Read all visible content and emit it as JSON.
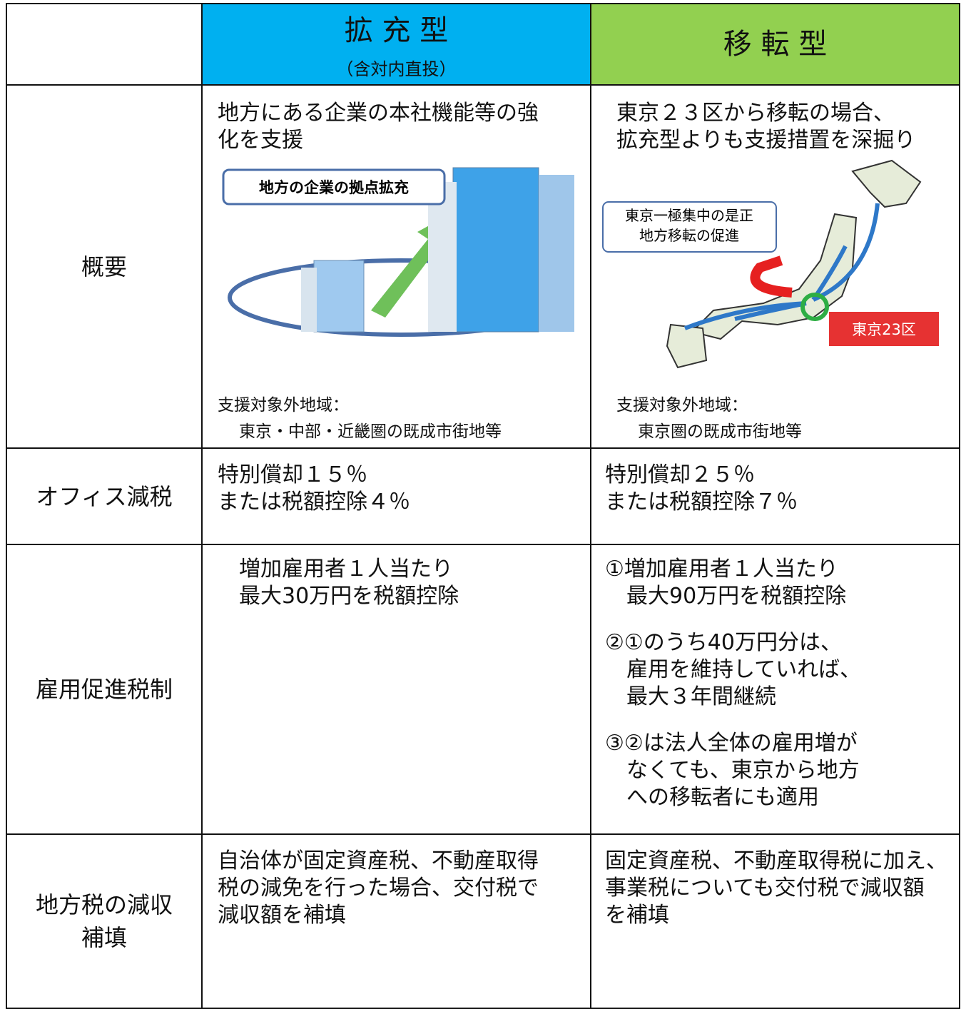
{
  "table": {
    "header": [
      {
        "title": "拡 充 型",
        "subtitle": "（含対内直投）"
      },
      {
        "title": "移 転 型"
      }
    ],
    "rows": [
      {
        "label": [
          "概要"
        ],
        "cells": [
          {
            "paragraphs": [
              [
                "地方にある企業の本社機能等の強",
                "化を支援"
              ]
            ],
            "figure_labels": [
              "地方の企業の拠点拡充"
            ],
            "note": [
              "支援対象外地域：",
              "東京・中部・近畿圏の既成市街地等"
            ]
          },
          {
            "paragraphs": [
              [
                "東京２３区から移転の場合、",
                "拡充型よりも支援措置を深掘り"
              ]
            ],
            "figure_labels": [
              "東京一極集中の是正",
              "地方移転の促進"
            ],
            "badge": "東京23区",
            "note": [
              "支援対象外地域：",
              "東京圏の既成市街地等"
            ]
          }
        ]
      },
      {
        "label": [
          "オフィス減税"
        ],
        "cells": [
          {
            "paragraphs": [
              [
                "特別償却１５％",
                "または税額控除４％"
              ]
            ]
          },
          {
            "paragraphs": [
              [
                "特別償却２５％",
                "または税額控除７％"
              ]
            ]
          }
        ]
      },
      {
        "label": [
          "雇用促進税制"
        ],
        "cells": [
          {
            "paragraphs": [
              [
                "増加雇用者１人当たり",
                "最大30万円を税額控除"
              ]
            ]
          },
          {
            "paragraphs": [
              [
                "①増加雇用者１人当たり",
                "最大90万円を税額控除"
              ],
              [
                "②①のうち40万円分は、",
                "雇用を維持していれば、",
                "最大３年間継続"
              ],
              [
                "③②は法人全体の雇用増が",
                "なくても、東京から地方",
                "への移転者にも適用"
              ]
            ]
          }
        ]
      },
      {
        "label": [
          "地方税の減収",
          "補填"
        ],
        "cells": [
          {
            "paragraphs": [
              [
                "自治体が固定資産税、不動産取得",
                "税の減免を行った場合、交付税で",
                "減収額を補填"
              ]
            ]
          },
          {
            "paragraphs": [
              [
                "固定資産税、不動産取得税に加え、",
                "事業税についても交付税で減収額",
                "を補填"
              ]
            ]
          }
        ]
      }
    ]
  }
}
